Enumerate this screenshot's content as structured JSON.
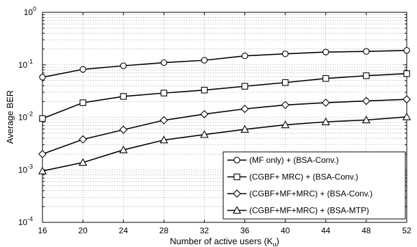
{
  "chart_data": {
    "type": "line",
    "xlabel": "Number of active users (K",
    "xlabel_sub": "u",
    "xlabel_close": ")",
    "ylabel": "Average BER",
    "y_scale": "log",
    "xlim": [
      16,
      52
    ],
    "ylim": [
      0.0001,
      1
    ],
    "grid": true,
    "legend_position": "bottom-right",
    "x": [
      16,
      20,
      24,
      28,
      32,
      36,
      40,
      44,
      48,
      52
    ],
    "x_tick_labels": [
      "16",
      "20",
      "24",
      "28",
      "32",
      "36",
      "40",
      "44",
      "48",
      "52"
    ],
    "y_ticks": [
      {
        "value": 1,
        "base": "10",
        "exp": "0"
      },
      {
        "value": 0.1,
        "base": "10",
        "exp": "-1"
      },
      {
        "value": 0.01,
        "base": "10",
        "exp": "-2"
      },
      {
        "value": 0.001,
        "base": "10",
        "exp": "-3"
      },
      {
        "value": 0.0001,
        "base": "10",
        "exp": "-4"
      }
    ],
    "series": [
      {
        "name": "(MF only) + (BSA-Conv.)",
        "marker": "circle",
        "values": [
          0.058,
          0.082,
          0.096,
          0.11,
          0.122,
          0.148,
          0.162,
          0.175,
          0.18,
          0.188
        ]
      },
      {
        "name": "(CGBF+ MRC) + (BSA-Conv.)",
        "marker": "square",
        "values": [
          0.0095,
          0.019,
          0.025,
          0.029,
          0.033,
          0.039,
          0.046,
          0.055,
          0.062,
          0.068
        ]
      },
      {
        "name": "(CGBF+MF+MRC) + (BSA-Conv.)",
        "marker": "diamond",
        "values": [
          0.002,
          0.0038,
          0.0058,
          0.0088,
          0.0115,
          0.0145,
          0.0172,
          0.019,
          0.0205,
          0.022
        ]
      },
      {
        "name": "(CGBF+MF+MRC) + (BSA-MTP)",
        "marker": "triangle",
        "values": [
          0.00095,
          0.00138,
          0.0024,
          0.0037,
          0.0047,
          0.0059,
          0.0072,
          0.0082,
          0.0089,
          0.0102
        ]
      }
    ]
  }
}
